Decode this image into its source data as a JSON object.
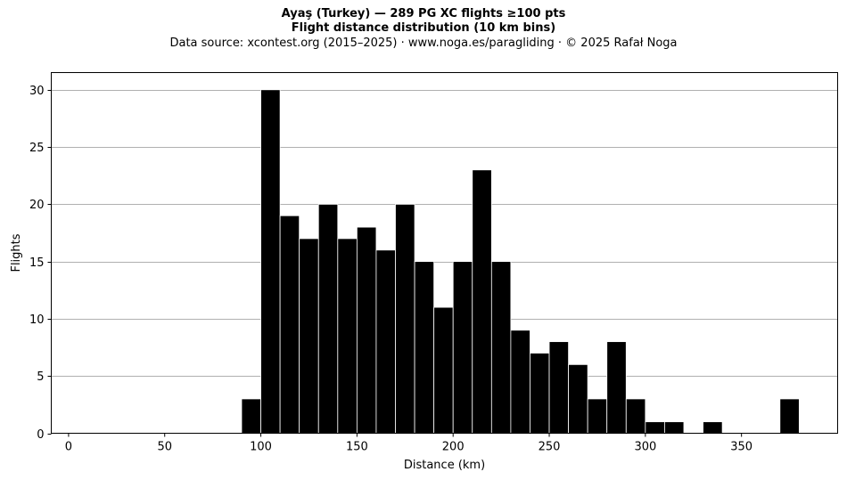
{
  "header": {
    "title": "Ayaş (Turkey)  —  289 PG XC flights ≥100 pts",
    "subtitle": "Flight distance distribution (10 km bins)",
    "source": "Data source: xcontest.org (2015–2025)  ·  www.noga.es/paragliding  ·  © 2025 Rafał Noga"
  },
  "chart_data": {
    "type": "bar",
    "title": "Ayaş (Turkey)  —  289 PG XC flights ≥100 pts",
    "subtitle": "Flight distance distribution (10 km bins)",
    "xlabel": "Distance (km)",
    "ylabel": "Flights",
    "xlim": [
      -9,
      400
    ],
    "ylim": [
      0,
      31.5
    ],
    "xticks": [
      0,
      50,
      100,
      150,
      200,
      250,
      300,
      350
    ],
    "yticks": [
      0,
      5,
      10,
      15,
      20,
      25,
      30
    ],
    "bin_width": 10,
    "grid": "horizontal",
    "bar_color": "#000000",
    "edge_color": "#ffffff",
    "grid_color": "#b0b0b0",
    "bins": [
      {
        "start": 90,
        "count": 3
      },
      {
        "start": 100,
        "count": 30
      },
      {
        "start": 110,
        "count": 19
      },
      {
        "start": 120,
        "count": 17
      },
      {
        "start": 130,
        "count": 20
      },
      {
        "start": 140,
        "count": 17
      },
      {
        "start": 150,
        "count": 18
      },
      {
        "start": 160,
        "count": 16
      },
      {
        "start": 170,
        "count": 20
      },
      {
        "start": 180,
        "count": 15
      },
      {
        "start": 190,
        "count": 11
      },
      {
        "start": 200,
        "count": 15
      },
      {
        "start": 210,
        "count": 23
      },
      {
        "start": 220,
        "count": 15
      },
      {
        "start": 230,
        "count": 9
      },
      {
        "start": 240,
        "count": 7
      },
      {
        "start": 250,
        "count": 8
      },
      {
        "start": 260,
        "count": 6
      },
      {
        "start": 270,
        "count": 3
      },
      {
        "start": 280,
        "count": 8
      },
      {
        "start": 290,
        "count": 3
      },
      {
        "start": 300,
        "count": 1
      },
      {
        "start": 310,
        "count": 1
      },
      {
        "start": 320,
        "count": 0
      },
      {
        "start": 330,
        "count": 1
      },
      {
        "start": 340,
        "count": 0
      },
      {
        "start": 350,
        "count": 0
      },
      {
        "start": 360,
        "count": 0
      },
      {
        "start": 370,
        "count": 3
      }
    ]
  }
}
